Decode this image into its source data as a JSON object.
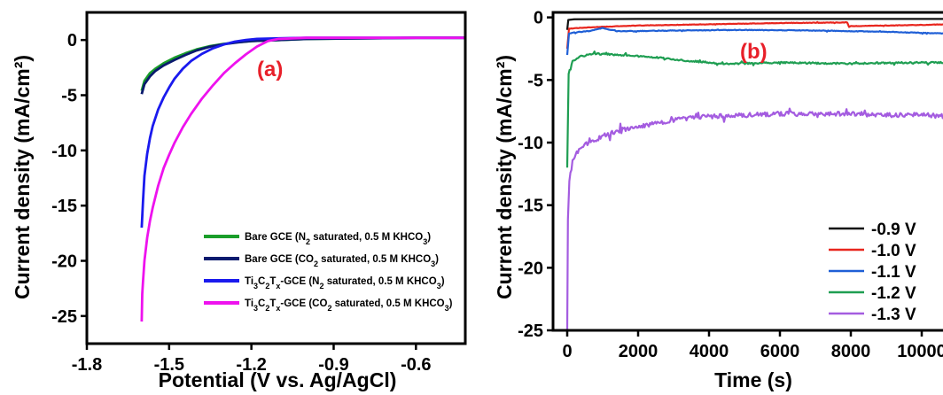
{
  "chart_data": [
    {
      "type": "line",
      "panel_label": "(a)",
      "xlabel": "Potential (V vs. Ag/AgCl)",
      "ylabel": "Current density (mA/cm²)",
      "xlim": [
        -1.8,
        -0.42
      ],
      "ylim": [
        -27.5,
        2.5
      ],
      "xticks": [
        "-1.8",
        "-1.5",
        "-1.2",
        "-0.9",
        "-0.6"
      ],
      "xtick_values": [
        -1.8,
        -1.5,
        -1.2,
        -0.9,
        -0.6
      ],
      "yticks": [
        "0",
        "-5",
        "-10",
        "-15",
        "-20",
        "-25"
      ],
      "ytick_values": [
        0,
        -5,
        -10,
        -15,
        -20,
        -25
      ],
      "legend_position": "bottom-right",
      "series": [
        {
          "name": "Bare GCE (N₂ saturated, 0.5 M KHCO₃)",
          "color": "#1a9e2a",
          "x": [
            -1.6,
            -1.59,
            -1.57,
            -1.55,
            -1.52,
            -1.48,
            -1.44,
            -1.4,
            -1.35,
            -1.3,
            -1.25,
            -1.2,
            -1.1,
            -1.0,
            -0.8,
            -0.6,
            -0.42
          ],
          "y": [
            -4.6,
            -3.7,
            -3.0,
            -2.6,
            -2.1,
            -1.6,
            -1.2,
            -0.85,
            -0.55,
            -0.35,
            -0.2,
            -0.1,
            0.0,
            0.1,
            0.15,
            0.2,
            0.2
          ]
        },
        {
          "name": "Bare GCE (CO₂ saturated, 0.5 M KHCO₃)",
          "color": "#0a1a6e",
          "x": [
            -1.6,
            -1.59,
            -1.57,
            -1.55,
            -1.52,
            -1.48,
            -1.44,
            -1.4,
            -1.35,
            -1.3,
            -1.25,
            -1.2,
            -1.1,
            -1.0,
            -0.8,
            -0.6,
            -0.42
          ],
          "y": [
            -4.9,
            -4.0,
            -3.3,
            -2.8,
            -2.3,
            -1.8,
            -1.35,
            -0.95,
            -0.6,
            -0.38,
            -0.22,
            -0.1,
            0.0,
            0.1,
            0.15,
            0.2,
            0.2
          ]
        },
        {
          "name": "Ti₃C₂Tₓ-GCE (N₂ saturated, 0.5 M KHCO₃)",
          "color": "#1a1aee",
          "x": [
            -1.6,
            -1.595,
            -1.59,
            -1.58,
            -1.57,
            -1.56,
            -1.54,
            -1.52,
            -1.5,
            -1.48,
            -1.45,
            -1.42,
            -1.38,
            -1.34,
            -1.3,
            -1.26,
            -1.22,
            -1.18,
            -1.1,
            -1.0,
            -0.8,
            -0.6,
            -0.42
          ],
          "y": [
            -17.0,
            -14.5,
            -12.3,
            -10.3,
            -8.9,
            -7.8,
            -6.3,
            -5.2,
            -4.3,
            -3.5,
            -2.6,
            -1.9,
            -1.25,
            -0.75,
            -0.4,
            -0.15,
            0.0,
            0.1,
            0.15,
            0.2,
            0.2,
            0.2,
            0.2
          ]
        },
        {
          "name": "Ti₃C₂Tₓ-GCE (CO₂ saturated, 0.5 M KHCO₃)",
          "color": "#ee12ee",
          "x": [
            -1.6,
            -1.598,
            -1.595,
            -1.59,
            -1.58,
            -1.57,
            -1.56,
            -1.54,
            -1.52,
            -1.5,
            -1.48,
            -1.45,
            -1.42,
            -1.38,
            -1.34,
            -1.3,
            -1.26,
            -1.22,
            -1.18,
            -1.14,
            -1.1,
            -1.0,
            -0.8,
            -0.6,
            -0.42
          ],
          "y": [
            -25.5,
            -23.0,
            -21.8,
            -20.0,
            -17.9,
            -16.4,
            -15.2,
            -13.2,
            -11.6,
            -10.4,
            -9.3,
            -7.9,
            -6.7,
            -5.3,
            -4.1,
            -3.0,
            -2.1,
            -1.3,
            -0.6,
            -0.1,
            0.1,
            0.2,
            0.2,
            0.2,
            0.2
          ]
        }
      ]
    },
    {
      "type": "line",
      "panel_label": "(b)",
      "xlabel": "Time (s)",
      "ylabel": "Current density (mA/cm²)",
      "xlim": [
        -400,
        10800
      ],
      "ylim": [
        -25,
        0.4
      ],
      "xticks": [
        "0",
        "2000",
        "4000",
        "6000",
        "8000",
        "10000"
      ],
      "xtick_values": [
        0,
        2000,
        4000,
        6000,
        8000,
        10000
      ],
      "yticks": [
        "0",
        "-5",
        "-10",
        "-15",
        "-20",
        "-25"
      ],
      "ytick_values": [
        0,
        -5,
        -10,
        -15,
        -20,
        -25
      ],
      "legend_position": "bottom-right",
      "series": [
        {
          "name": "-0.9 V",
          "color": "#111111",
          "x": [
            0,
            30,
            200,
            2000,
            6000,
            10800
          ],
          "y": [
            -1.0,
            -0.2,
            -0.15,
            -0.12,
            -0.12,
            -0.12
          ]
        },
        {
          "name": "-1.0 V",
          "color": "#e8261e",
          "x": [
            0,
            50,
            300,
            1000,
            2000,
            4000,
            6000,
            7900,
            7950,
            8000,
            10000,
            10800
          ],
          "y": [
            -2.5,
            -0.9,
            -0.85,
            -0.75,
            -0.65,
            -0.55,
            -0.45,
            -0.4,
            -0.75,
            -0.7,
            -0.6,
            -0.55
          ]
        },
        {
          "name": "-1.1 V",
          "color": "#1f5fd6",
          "x": [
            0,
            50,
            200,
            600,
            1000,
            1400,
            3000,
            5000,
            7000,
            9000,
            10800
          ],
          "y": [
            -3.0,
            -1.3,
            -1.2,
            -1.1,
            -0.85,
            -1.1,
            -1.05,
            -1.0,
            -1.05,
            -1.15,
            -1.3
          ]
        },
        {
          "name": "-1.2 V",
          "color": "#1f9e52",
          "x": [
            0,
            40,
            150,
            400,
            800,
            1500,
            2500,
            3500,
            4500,
            6000,
            8000,
            10000,
            10800
          ],
          "y": [
            -12.0,
            -4.5,
            -3.5,
            -3.1,
            -2.9,
            -3.0,
            -3.2,
            -3.5,
            -3.7,
            -3.6,
            -3.7,
            -3.6,
            -3.6
          ]
        },
        {
          "name": "-1.3 V",
          "color": "#a45ce0",
          "x": [
            0,
            20,
            60,
            150,
            300,
            600,
            1000,
            1500,
            2000,
            3000,
            4000,
            5000,
            6000,
            7000,
            8000,
            9000,
            10000,
            10800
          ],
          "y": [
            -25.0,
            -16.0,
            -13.0,
            -11.5,
            -10.7,
            -10.0,
            -9.5,
            -9.0,
            -8.7,
            -8.2,
            -7.9,
            -7.8,
            -7.7,
            -7.7,
            -7.7,
            -7.8,
            -7.8,
            -7.9
          ]
        }
      ]
    }
  ]
}
